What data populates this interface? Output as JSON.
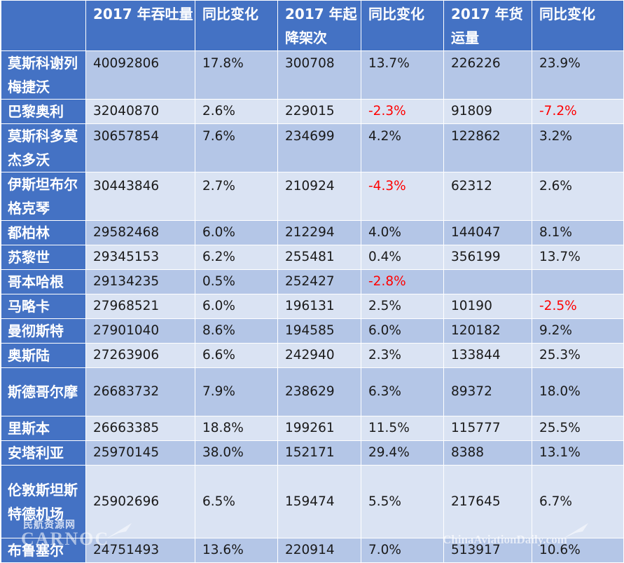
{
  "headers": [
    "",
    "2017 年吞吐量",
    "同比变化",
    "2017 年起降架次",
    "同比变化",
    "2017 年货运量",
    "同比变化"
  ],
  "rows": [
    {
      "name": "莫斯科谢列梅捷沃",
      "passengers": "40092806",
      "passengers_change": "17.8%",
      "movements": "300708",
      "movements_change": "13.7%",
      "cargo": "226226",
      "cargo_change": "23.9%"
    },
    {
      "name": "巴黎奥利",
      "passengers": "32040870",
      "passengers_change": "2.6%",
      "movements": "229015",
      "movements_change": "-2.3%",
      "cargo": "91809",
      "cargo_change": "-7.2%"
    },
    {
      "name": "莫斯科多莫杰多沃",
      "passengers": "30657854",
      "passengers_change": "7.6%",
      "movements": "234699",
      "movements_change": "4.2%",
      "cargo": "122862",
      "cargo_change": "3.2%"
    },
    {
      "name": "伊斯坦布尔格克琴",
      "passengers": "30443846",
      "passengers_change": "2.7%",
      "movements": "210924",
      "movements_change": "-4.3%",
      "cargo": "62312",
      "cargo_change": "2.6%"
    },
    {
      "name": "都柏林",
      "passengers": "29582468",
      "passengers_change": "6.0%",
      "movements": "212294",
      "movements_change": "4.0%",
      "cargo": "144047",
      "cargo_change": "8.1%"
    },
    {
      "name": "苏黎世",
      "passengers": "29345153",
      "passengers_change": "6.2%",
      "movements": "255481",
      "movements_change": "0.4%",
      "cargo": "356199",
      "cargo_change": "13.7%"
    },
    {
      "name": "哥本哈根",
      "passengers": "29134235",
      "passengers_change": "0.5%",
      "movements": "252427",
      "movements_change": "-2.8%",
      "cargo": "",
      "cargo_change": ""
    },
    {
      "name": "马略卡",
      "passengers": "27968521",
      "passengers_change": "6.0%",
      "movements": "196131",
      "movements_change": "2.5%",
      "cargo": "10190",
      "cargo_change": "-2.5%"
    },
    {
      "name": "曼彻斯特",
      "passengers": "27901040",
      "passengers_change": "8.6%",
      "movements": "194585",
      "movements_change": "6.0%",
      "cargo": "120182",
      "cargo_change": "9.2%"
    },
    {
      "name": "奥斯陆",
      "passengers": "27263906",
      "passengers_change": "6.6%",
      "movements": "242940",
      "movements_change": "2.3%",
      "cargo": "133844",
      "cargo_change": "25.3%"
    },
    {
      "name": "斯德哥尔摩",
      "passengers": "26683732",
      "passengers_change": "7.9%",
      "movements": "238629",
      "movements_change": "6.3%",
      "cargo": "89372",
      "cargo_change": "18.0%"
    },
    {
      "name": "里斯本",
      "passengers": "26663385",
      "passengers_change": "18.8%",
      "movements": "199261",
      "movements_change": "11.5%",
      "cargo": "115777",
      "cargo_change": "25.5%"
    },
    {
      "name": "安塔利亚",
      "passengers": "25970145",
      "passengers_change": "38.0%",
      "movements": "152171",
      "movements_change": "29.4%",
      "cargo": "8388",
      "cargo_change": "13.1%"
    },
    {
      "name": "伦敦斯坦斯特德机场",
      "passengers": "25902696",
      "passengers_change": "6.5%",
      "movements": "159474",
      "movements_change": "5.5%",
      "cargo": "217645",
      "cargo_change": "6.7%"
    },
    {
      "name": "布鲁塞尔",
      "passengers": "24751493",
      "passengers_change": "13.6%",
      "movements": "220914",
      "movements_change": "7.0%",
      "cargo": "513917",
      "cargo_change": "10.6%"
    }
  ],
  "watermark": {
    "line1": "民航资源网",
    "line2": "CARNOC",
    "line3": "ChinaAviationDaily.com"
  },
  "colors": {
    "header": "#4472c4",
    "row_dark": "#b4c6e7",
    "row_light": "#dae3f3",
    "negative": "#ff0000"
  }
}
